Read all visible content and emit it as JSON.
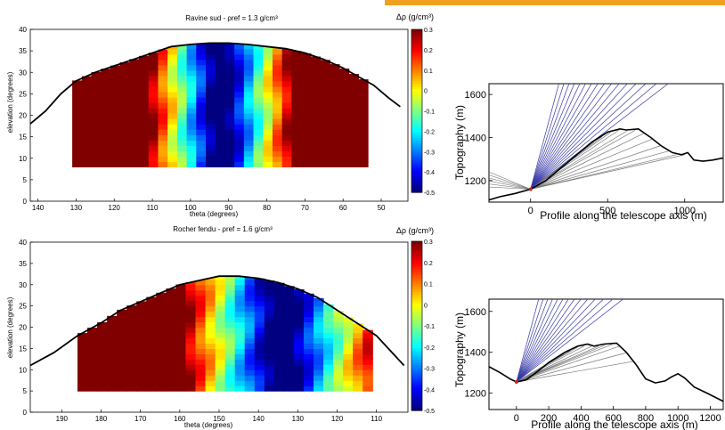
{
  "colors": {
    "accent": "#f0a020",
    "topo_line": "#000000",
    "ray_blue": "#3838a8",
    "ray_gray": "#777777"
  },
  "colorbar": {
    "label": "Δρ (g/cm³)",
    "ticks": [
      "0.3",
      "0.2",
      "0.1",
      "0",
      "-0.1",
      "-0.2",
      "-0.3",
      "-0.4",
      "-0.5"
    ],
    "range": [
      -0.5,
      0.3
    ],
    "colormap": "jet"
  },
  "chart_data": [
    {
      "type": "heatmap",
      "title": "Ravine sud - ρref = 1.3 g/cm³",
      "xlabel": "theta (degrees)",
      "ylabel": "elevation (degrees)",
      "x_ticks": [
        "140",
        "130",
        "120",
        "110",
        "100",
        "90",
        "80",
        "70",
        "60",
        "50"
      ],
      "y_ticks": [
        "0",
        "5",
        "10",
        "15",
        "20",
        "25",
        "30",
        "35",
        "40"
      ],
      "xlim": [
        142,
        43
      ],
      "ylim": [
        0,
        40
      ],
      "horizon": [
        [
          142,
          18
        ],
        [
          138,
          21
        ],
        [
          134,
          25
        ],
        [
          130,
          28
        ],
        [
          125,
          30
        ],
        [
          120,
          31.5
        ],
        [
          115,
          33
        ],
        [
          110,
          34.5
        ],
        [
          105,
          36
        ],
        [
          100,
          36.5
        ],
        [
          95,
          36.8
        ],
        [
          90,
          36.8
        ],
        [
          85,
          36.5
        ],
        [
          80,
          36
        ],
        [
          75,
          35.5
        ],
        [
          70,
          34.5
        ],
        [
          65,
          33
        ],
        [
          60,
          31
        ],
        [
          56,
          29
        ],
        [
          52,
          27
        ],
        [
          48,
          24
        ],
        [
          45,
          22
        ]
      ],
      "measured_region": {
        "theta": [
          131,
          54.5
        ],
        "elevation_min": 8
      },
      "low_density_core": {
        "theta": [
          104,
          80
        ],
        "elevation": [
          5,
          37
        ]
      },
      "colorbar_ticks": [
        "0.3",
        "0.2",
        "0.1",
        "0",
        "-0.1",
        "-0.2",
        "-0.3",
        "-0.4",
        "-0.5"
      ],
      "colorbar_label": "Δρ (g/cm³)"
    },
    {
      "type": "heatmap",
      "title": "Rocher fendu - ρref = 1.6 g/cm³",
      "xlabel": "theta (degrees)",
      "ylabel": "elevation (degrees)",
      "x_ticks": [
        "190",
        "180",
        "170",
        "160",
        "150",
        "140",
        "130",
        "120",
        "110"
      ],
      "y_ticks": [
        "0",
        "5",
        "10",
        "15",
        "20",
        "25",
        "30",
        "35",
        "40"
      ],
      "xlim": [
        198,
        102
      ],
      "ylim": [
        0,
        40
      ],
      "horizon": [
        [
          198,
          11
        ],
        [
          192,
          14
        ],
        [
          186,
          18
        ],
        [
          180,
          21
        ],
        [
          175,
          24
        ],
        [
          170,
          26
        ],
        [
          165,
          28
        ],
        [
          160,
          30
        ],
        [
          155,
          31
        ],
        [
          150,
          32
        ],
        [
          145,
          32
        ],
        [
          140,
          31.5
        ],
        [
          135,
          30.5
        ],
        [
          130,
          29
        ],
        [
          125,
          27
        ],
        [
          120,
          24
        ],
        [
          115,
          21
        ],
        [
          110,
          18
        ],
        [
          106,
          14
        ],
        [
          103,
          11
        ]
      ],
      "measured_region": {
        "theta": [
          186,
          113
        ],
        "elevation_min": 5
      },
      "low_density_core": {
        "theta": [
          150,
          118
        ],
        "elevation": [
          5,
          29
        ]
      },
      "colorbar_ticks": [
        "0.3",
        "0.2",
        "0.1",
        "0",
        "-0.1",
        "-0.2",
        "-0.3",
        "-0.4",
        "-0.5"
      ],
      "colorbar_label": "Δρ (g/cm³)"
    },
    {
      "type": "line",
      "xlabel": "Profile along the telescope axis (m)",
      "ylabel": "Topography (m)",
      "x_ticks": [
        "0",
        "500",
        "1000"
      ],
      "y_ticks": [
        "1200",
        "1400",
        "1600"
      ],
      "xlim": [
        -270,
        1250
      ],
      "ylim": [
        1100,
        1650
      ],
      "telescope": [
        0,
        1160
      ],
      "topography": [
        [
          -270,
          1110
        ],
        [
          -200,
          1125
        ],
        [
          -100,
          1140
        ],
        [
          0,
          1160
        ],
        [
          100,
          1200
        ],
        [
          200,
          1260
        ],
        [
          300,
          1320
        ],
        [
          400,
          1380
        ],
        [
          500,
          1425
        ],
        [
          580,
          1440
        ],
        [
          620,
          1435
        ],
        [
          700,
          1440
        ],
        [
          780,
          1400
        ],
        [
          850,
          1360
        ],
        [
          920,
          1330
        ],
        [
          980,
          1320
        ],
        [
          1020,
          1330
        ],
        [
          1060,
          1295
        ],
        [
          1120,
          1290
        ],
        [
          1180,
          1295
        ],
        [
          1250,
          1305
        ]
      ],
      "rays": {
        "blue_count": 16,
        "gray_count": 15,
        "back_gray_count": 6
      }
    },
    {
      "type": "line",
      "xlabel": "Profile along the telescope axis (m)",
      "ylabel": "Topography (m)",
      "x_ticks": [
        "0",
        "200",
        "400",
        "600",
        "800",
        "1000",
        "1200"
      ],
      "y_ticks": [
        "1200",
        "1400",
        "1600"
      ],
      "xlim": [
        -170,
        1280
      ],
      "ylim": [
        1120,
        1660
      ],
      "telescope": [
        0,
        1255
      ],
      "topography": [
        [
          -170,
          1330
        ],
        [
          -100,
          1300
        ],
        [
          -40,
          1270
        ],
        [
          0,
          1255
        ],
        [
          60,
          1265
        ],
        [
          120,
          1300
        ],
        [
          200,
          1350
        ],
        [
          300,
          1400
        ],
        [
          380,
          1430
        ],
        [
          440,
          1440
        ],
        [
          480,
          1430
        ],
        [
          540,
          1440
        ],
        [
          620,
          1445
        ],
        [
          680,
          1400
        ],
        [
          740,
          1340
        ],
        [
          800,
          1270
        ],
        [
          860,
          1250
        ],
        [
          920,
          1260
        ],
        [
          960,
          1280
        ],
        [
          1000,
          1295
        ],
        [
          1040,
          1275
        ],
        [
          1100,
          1230
        ],
        [
          1180,
          1200
        ],
        [
          1280,
          1160
        ]
      ],
      "rays": {
        "blue_count": 14,
        "gray_count": 12,
        "back_gray_count": 0
      }
    }
  ]
}
